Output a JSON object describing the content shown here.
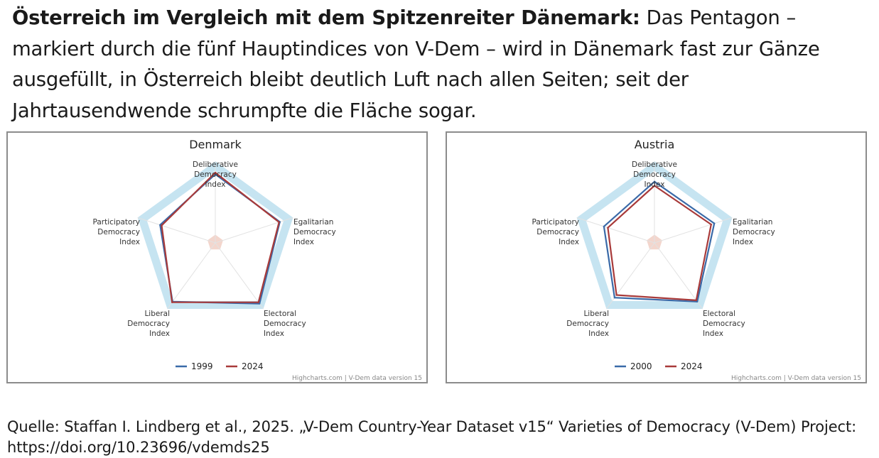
{
  "caption": {
    "bold": "Österreich im Vergleich mit dem Spitzenreiter Dänemark:",
    "text": "Das Pentagon – markiert durch die fünf Hauptindices von V-Dem – wird in Dänemark fast zur Gänze ausgefüllt, in Österreich bleibt deutlich Luft nach allen Seiten; seit der Jahrtausendwende schrumpfte die Fläche sogar."
  },
  "chart_data": [
    {
      "type": "radar",
      "title": "Denmark",
      "axes": [
        [
          "Deliberative",
          "Democracy",
          "Index"
        ],
        [
          "Egalitarian",
          "Democracy",
          "Index"
        ],
        [
          "Electoral",
          "Democracy",
          "Index"
        ],
        [
          "Liberal",
          "Democracy",
          "Index"
        ],
        [
          "Participatory",
          "Democracy",
          "Index"
        ]
      ],
      "range": [
        0,
        1
      ],
      "band_range": [
        0.88,
        1.0
      ],
      "center_range": [
        0,
        0.1
      ],
      "series": [
        {
          "name": "1999",
          "color": "#3a6aa8",
          "values": [
            0.84,
            0.83,
            0.92,
            0.89,
            0.71
          ]
        },
        {
          "name": "2024",
          "color": "#a83a3a",
          "values": [
            0.86,
            0.82,
            0.9,
            0.9,
            0.69
          ]
        }
      ],
      "legend_position": "bottom",
      "credit": "Highcharts.com | V-Dem data version 15"
    },
    {
      "type": "radar",
      "title": "Austria",
      "axes": [
        [
          "Deliberative",
          "Democracy",
          "Index"
        ],
        [
          "Egalitarian",
          "Democracy",
          "Index"
        ],
        [
          "Electoral",
          "Democracy",
          "Index"
        ],
        [
          "Liberal",
          "Democracy",
          "Index"
        ],
        [
          "Participatory",
          "Democracy",
          "Index"
        ]
      ],
      "range": [
        0,
        1
      ],
      "band_range": [
        0.88,
        1.0
      ],
      "center_range": [
        0,
        0.1
      ],
      "series": [
        {
          "name": "2000",
          "color": "#3a6aa8",
          "values": [
            0.75,
            0.77,
            0.89,
            0.83,
            0.65
          ]
        },
        {
          "name": "2024",
          "color": "#a83a3a",
          "values": [
            0.7,
            0.73,
            0.87,
            0.79,
            0.6
          ]
        }
      ],
      "legend_position": "bottom",
      "credit": "Highcharts.com | V-Dem data version 15"
    }
  ],
  "colors": {
    "band": "#c6e4f1",
    "center": "#f3d6cd",
    "grid": "#e2e2e2",
    "frame": "#8c8c8c"
  },
  "source": {
    "text": "Quelle: Staffan I. Lindberg et al., 2025. „V-Dem Country-Year Dataset v15“ Varieties of Democracy (V-Dem) Project: https://doi.org/10.23696/vdemds25"
  }
}
